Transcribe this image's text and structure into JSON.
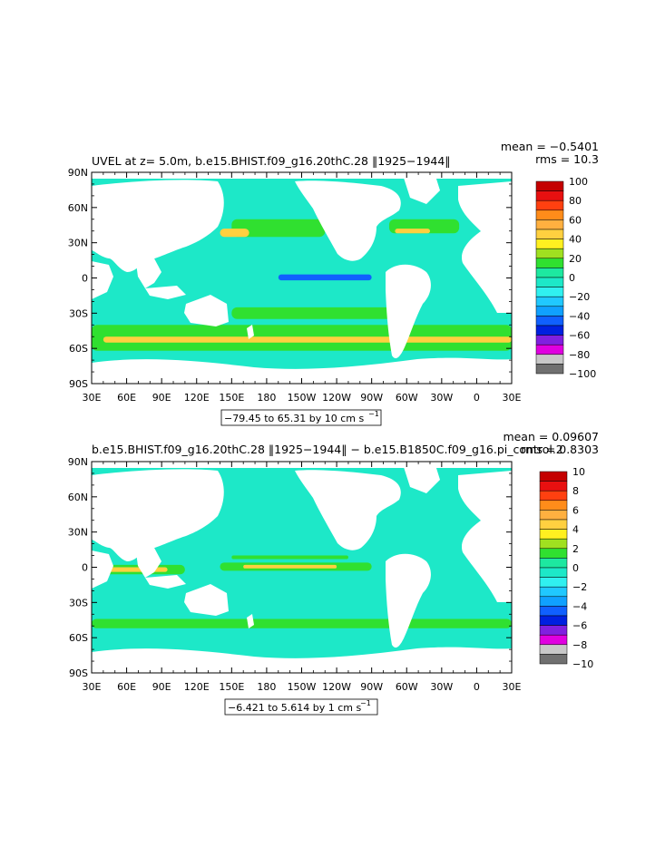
{
  "colors": {
    "land": "#ffffff",
    "frame": "#000000"
  },
  "chart_data": [
    {
      "type": "heatmap",
      "title": "UVEL at z=    5.0m, b.e15.BHIST.f09_g16.20thC.28 ‖1925−1944‖",
      "stats": {
        "mean": "mean = −0.5401",
        "rms": "rms = 10.3"
      },
      "x_ticks": [
        "30E",
        "60E",
        "90E",
        "120E",
        "150E",
        "180",
        "150W",
        "120W",
        "90W",
        "60W",
        "30W",
        "0",
        "30E"
      ],
      "y_ticks": [
        "90N",
        "60N",
        "30N",
        "0",
        "30S",
        "60S",
        "90S"
      ],
      "xlim": [
        30,
        390
      ],
      "ylim": [
        -90,
        90
      ],
      "range_label": "−79.45 to 65.31 by 10 cm s",
      "range_unit_exp": "−1",
      "ocean_base_color": "#1de8c8",
      "colorbar": {
        "labels": [
          "100",
          "80",
          "60",
          "40",
          "20",
          "0",
          "−20",
          "−40",
          "−60",
          "−80",
          "−100"
        ],
        "colors": [
          "#c40000",
          "#e81010",
          "#ff4010",
          "#ff8c1a",
          "#ffb040",
          "#ffd040",
          "#fff020",
          "#a0e020",
          "#30e030",
          "#1de8a0",
          "#1de8c8",
          "#30f0f0",
          "#20c8ff",
          "#10a0ff",
          "#1060ff",
          "#0020e0",
          "#8020e0",
          "#e000e0",
          "#c8c8c8",
          "#707070"
        ]
      },
      "regions": [
        {
          "name": "north-pacific-band",
          "color": "#30e030",
          "lon": [
            150,
            230
          ],
          "lat": [
            35,
            50
          ]
        },
        {
          "name": "kuroshio",
          "color": "#ffd040",
          "lon": [
            140,
            165
          ],
          "lat": [
            35,
            42
          ]
        },
        {
          "name": "north-atlantic-band",
          "color": "#30e030",
          "lon": [
            285,
            345
          ],
          "lat": [
            38,
            50
          ]
        },
        {
          "name": "gulf-stream",
          "color": "#ffd040",
          "lon": [
            290,
            320
          ],
          "lat": [
            38,
            42
          ]
        },
        {
          "name": "equatorial-current",
          "color": "#1060ff",
          "lon": [
            190,
            270
          ],
          "lat": [
            -2,
            3
          ]
        },
        {
          "name": "south-pacific-band",
          "color": "#30e030",
          "lon": [
            150,
            290
          ],
          "lat": [
            -35,
            -25
          ]
        },
        {
          "name": "acc-band",
          "color": "#30e030",
          "lon": [
            30,
            390
          ],
          "lat": [
            -62,
            -40
          ]
        },
        {
          "name": "acc-core",
          "color": "#ffd040",
          "lon": [
            40,
            390
          ],
          "lat": [
            -55,
            -50
          ]
        }
      ]
    },
    {
      "type": "heatmap",
      "title": "b.e15.BHIST.f09_g16.20thC.28 ‖1925−1944‖ − b.e15.B1850C.f09_g16.pi_control.2",
      "stats": {
        "mean": "mean = 0.09607",
        "rms": "rms = 0.8303"
      },
      "x_ticks": [
        "30E",
        "60E",
        "90E",
        "120E",
        "150E",
        "180",
        "150W",
        "120W",
        "90W",
        "60W",
        "30W",
        "0",
        "30E"
      ],
      "y_ticks": [
        "90N",
        "60N",
        "30N",
        "0",
        "30S",
        "60S",
        "90S"
      ],
      "xlim": [
        30,
        390
      ],
      "ylim": [
        -90,
        90
      ],
      "range_label": "−6.421 to 5.614 by 1 cm s",
      "range_unit_exp": "−1",
      "ocean_base_color": "#1de8c8",
      "colorbar": {
        "labels": [
          "10",
          "8",
          "6",
          "4",
          "2",
          "0",
          "−2",
          "−4",
          "−6",
          "−8",
          "−10"
        ],
        "colors": [
          "#c40000",
          "#e81010",
          "#ff4010",
          "#ff8c1a",
          "#ffb040",
          "#ffd040",
          "#fff020",
          "#a0e020",
          "#30e030",
          "#1de8a0",
          "#1de8c8",
          "#30f0f0",
          "#20c8ff",
          "#10a0ff",
          "#1060ff",
          "#0020e0",
          "#8020e0",
          "#e000e0",
          "#c8c8c8",
          "#707070"
        ]
      },
      "regions": [
        {
          "name": "indian-eq-band",
          "color": "#30e030",
          "lon": [
            40,
            110
          ],
          "lat": [
            -6,
            2
          ]
        },
        {
          "name": "indian-eq-core",
          "color": "#ffd040",
          "lon": [
            45,
            95
          ],
          "lat": [
            -4,
            0
          ]
        },
        {
          "name": "pacific-eq-band",
          "color": "#30e030",
          "lon": [
            140,
            270
          ],
          "lat": [
            -3,
            4
          ]
        },
        {
          "name": "pacific-eq-core",
          "color": "#ffd040",
          "lon": [
            160,
            240
          ],
          "lat": [
            -1,
            2
          ]
        },
        {
          "name": "pacific-north-band",
          "color": "#30e030",
          "lon": [
            150,
            250
          ],
          "lat": [
            7,
            10
          ]
        },
        {
          "name": "south-band",
          "color": "#30e030",
          "lon": [
            30,
            390
          ],
          "lat": [
            -52,
            -44
          ]
        }
      ]
    }
  ]
}
